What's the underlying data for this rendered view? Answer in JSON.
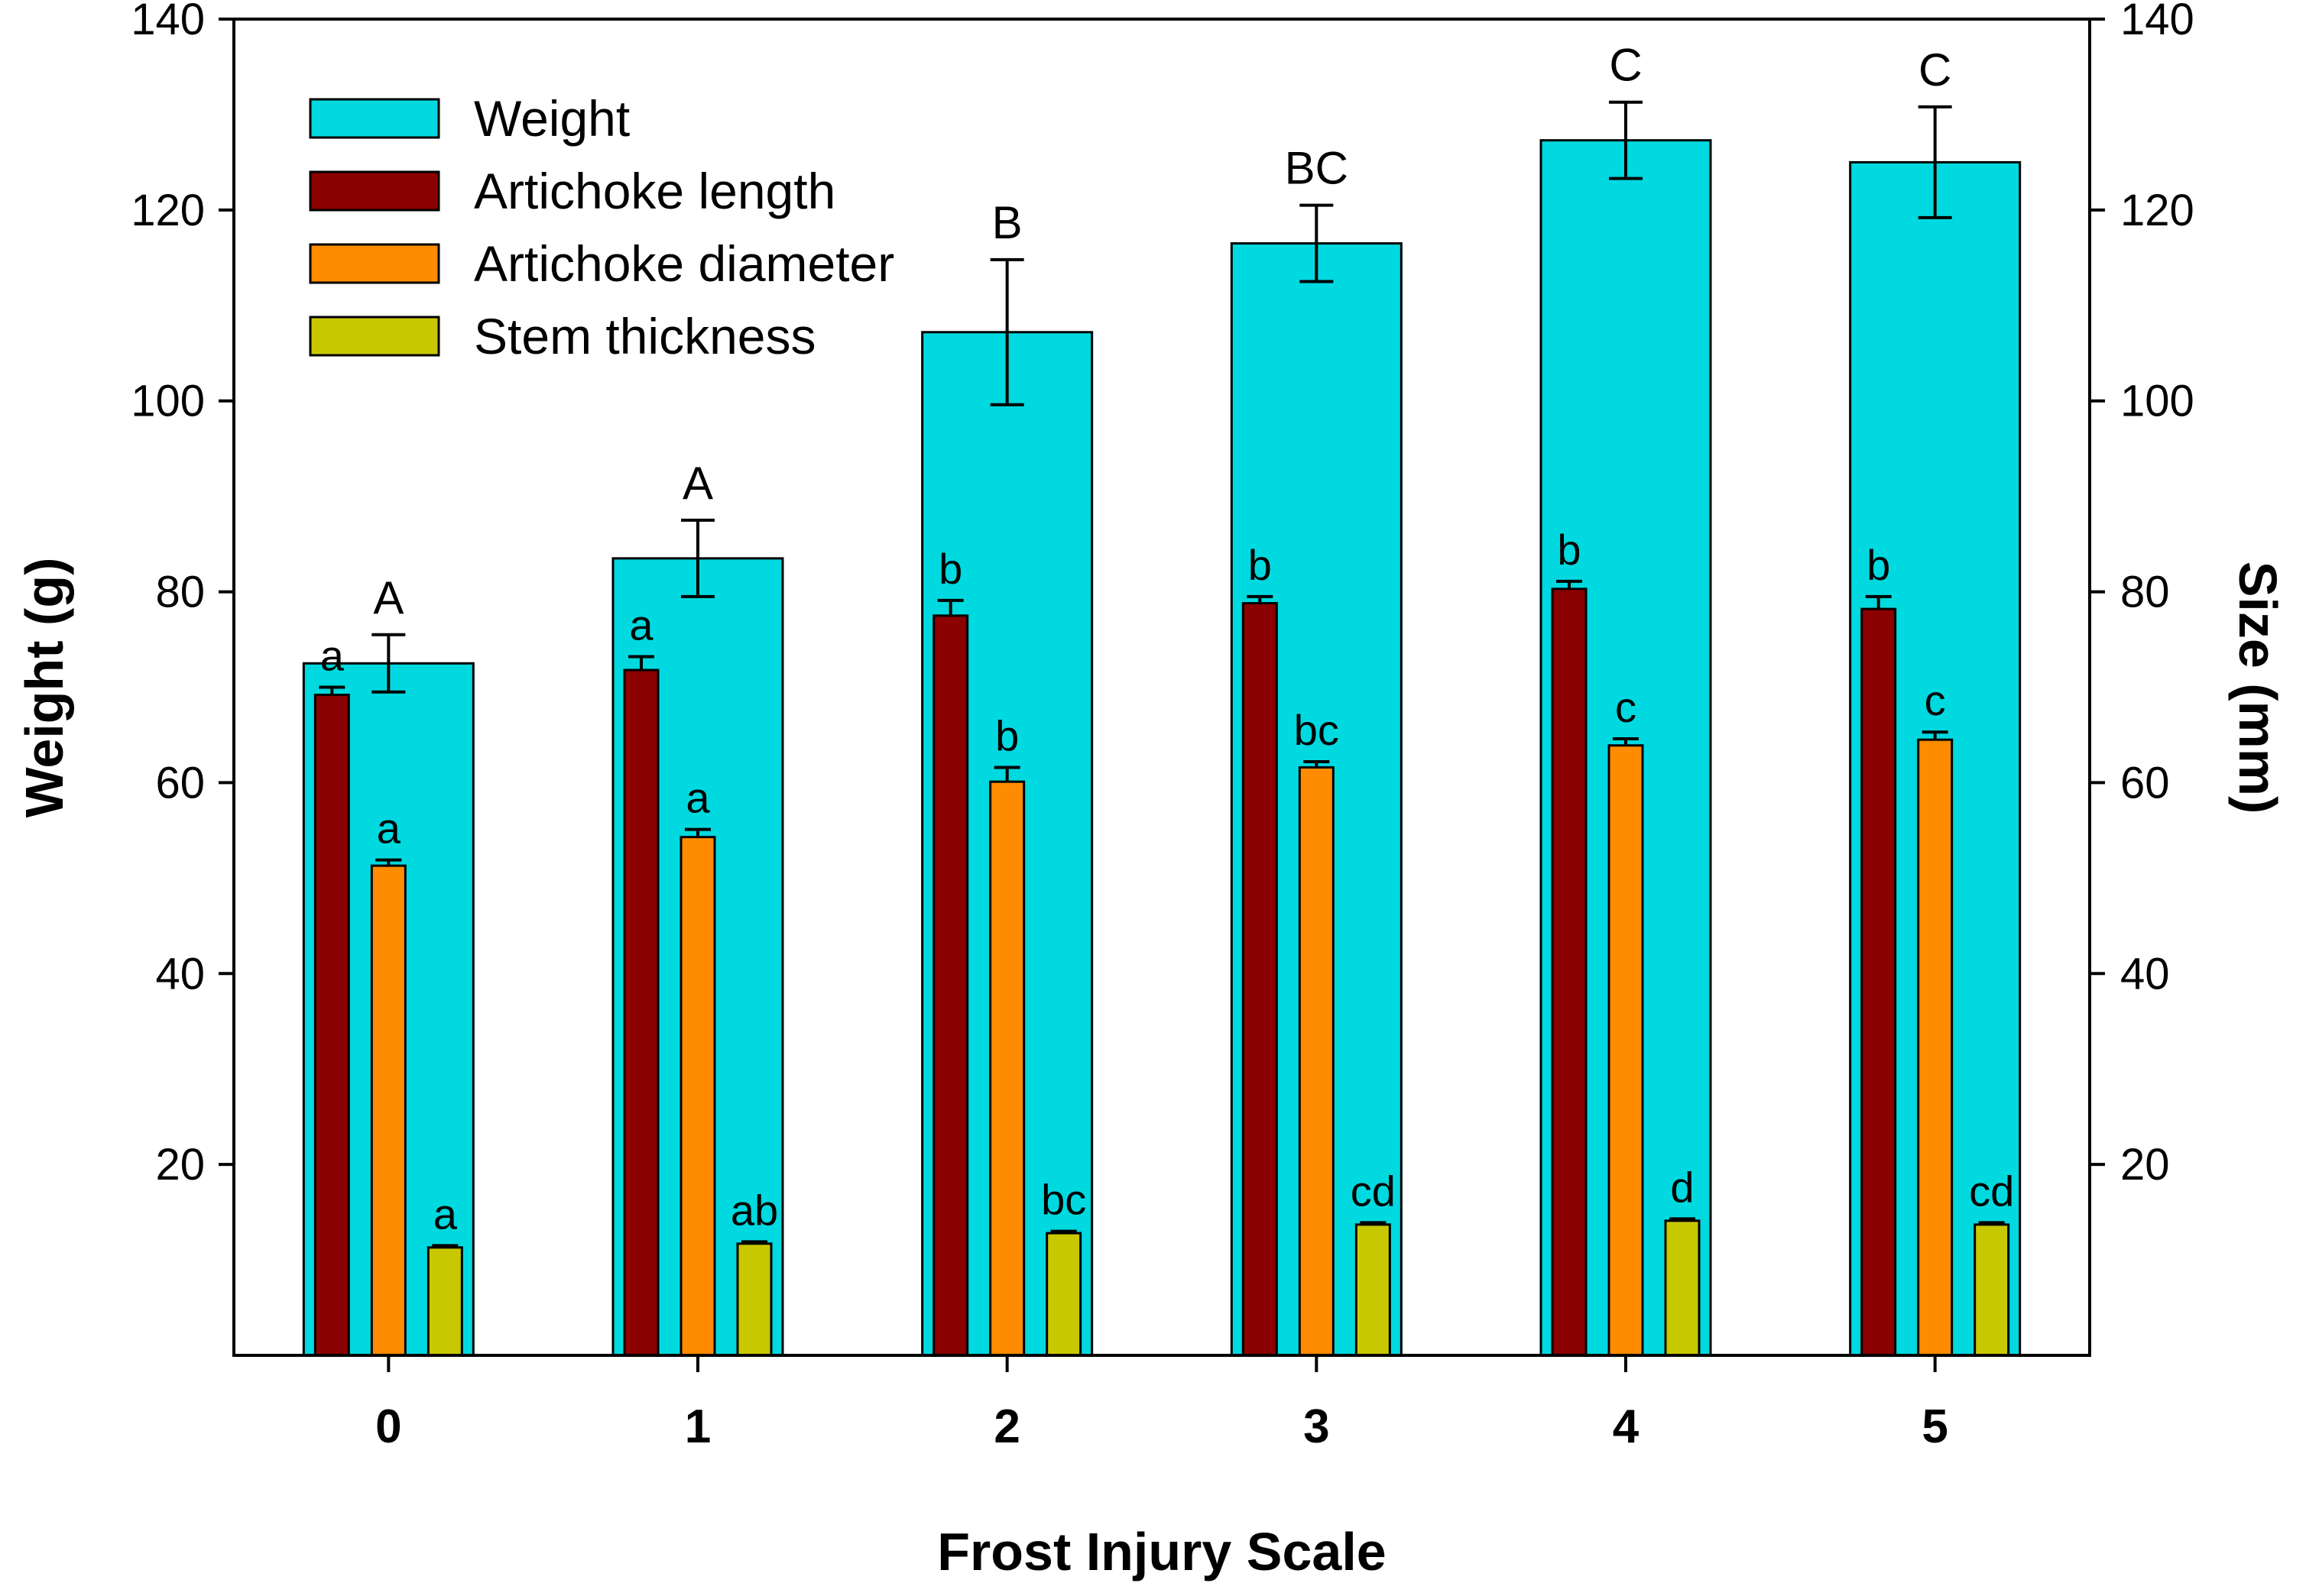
{
  "chart_data": {
    "type": "bar",
    "title": "",
    "xlabel": "Frost Injury Scale",
    "ylabel": "Weight (g)",
    "y2label": "Size (mm)",
    "categories": [
      "0",
      "1",
      "2",
      "3",
      "4",
      "5"
    ],
    "ylim": [
      0,
      140
    ],
    "y2lim": [
      0,
      140
    ],
    "yticks": [
      20,
      40,
      60,
      80,
      100,
      120,
      140
    ],
    "y2ticks": [
      20,
      40,
      60,
      80,
      100,
      120,
      140
    ],
    "grid": false,
    "legend_position": "top-left",
    "series": [
      {
        "name": "Weight",
        "axis": "left",
        "color": "#00D9DF",
        "values": [
          72.5,
          83.5,
          107.2,
          116.5,
          127.3,
          125.0
        ],
        "errors": [
          3.0,
          4.0,
          7.6,
          4.0,
          4.0,
          5.8
        ],
        "letters": [
          "A",
          "A",
          "B",
          "BC",
          "C",
          "C"
        ]
      },
      {
        "name": "Artichoke length",
        "axis": "right",
        "color": "#8B0000",
        "values": [
          69.2,
          71.8,
          77.5,
          78.8,
          80.3,
          78.2
        ],
        "errors": [
          0.8,
          1.4,
          1.6,
          0.7,
          0.8,
          1.3
        ],
        "letters": [
          "a",
          "a",
          "b",
          "b",
          "b",
          "b"
        ]
      },
      {
        "name": "Artichoke diameter",
        "axis": "right",
        "color": "#FF8C00",
        "values": [
          51.3,
          54.3,
          60.1,
          61.6,
          63.9,
          64.5
        ],
        "errors": [
          0.6,
          0.8,
          1.5,
          0.6,
          0.7,
          0.8
        ],
        "letters": [
          "a",
          "a",
          "b",
          "bc",
          "c",
          "c"
        ]
      },
      {
        "name": "Stem thickness",
        "axis": "right",
        "color": "#C8C800",
        "values": [
          11.3,
          11.7,
          12.8,
          13.7,
          14.1,
          13.7
        ],
        "errors": [
          0.2,
          0.2,
          0.2,
          0.2,
          0.2,
          0.2
        ],
        "letters": [
          "a",
          "ab",
          "bc",
          "cd",
          "d",
          "cd"
        ]
      }
    ]
  }
}
